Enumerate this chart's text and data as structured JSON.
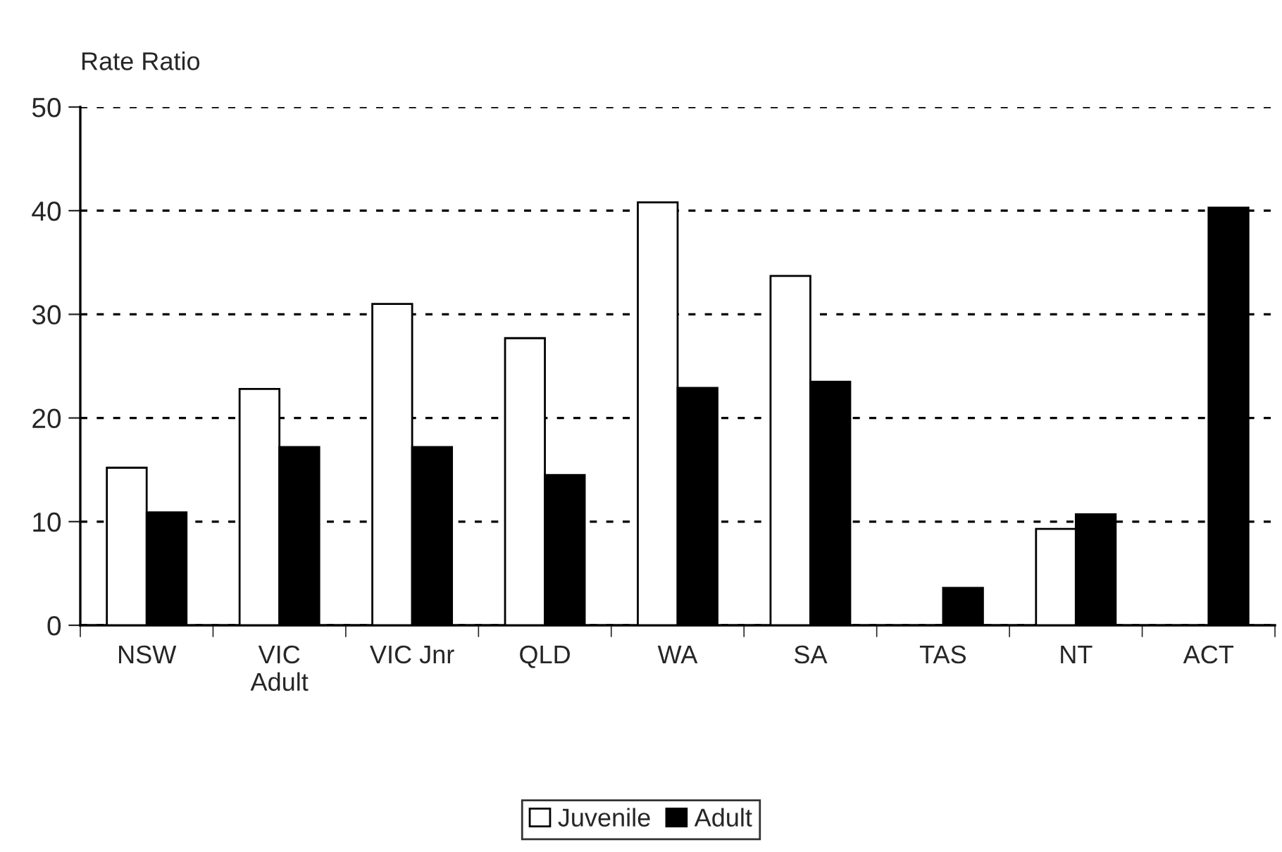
{
  "chart_data": {
    "type": "bar",
    "ylabel": "Rate Ratio",
    "categories": [
      "NSW",
      "VIC\nAdult",
      "VIC Jnr",
      "QLD",
      "WA",
      "SA",
      "TAS",
      "NT",
      "ACT"
    ],
    "series": [
      {
        "name": "Juvenile",
        "color": "#ffffff",
        "values": [
          15.2,
          22.8,
          31.0,
          27.7,
          40.8,
          33.7,
          null,
          9.3,
          null
        ]
      },
      {
        "name": "Adult",
        "color": "#000000",
        "values": [
          10.9,
          17.2,
          17.2,
          14.5,
          22.9,
          23.5,
          3.6,
          10.7,
          40.3
        ]
      }
    ],
    "ylim": [
      0,
      50
    ],
    "yticks": [
      0,
      10,
      20,
      30,
      40,
      50
    ],
    "grid": "y",
    "legend": "bottom"
  }
}
